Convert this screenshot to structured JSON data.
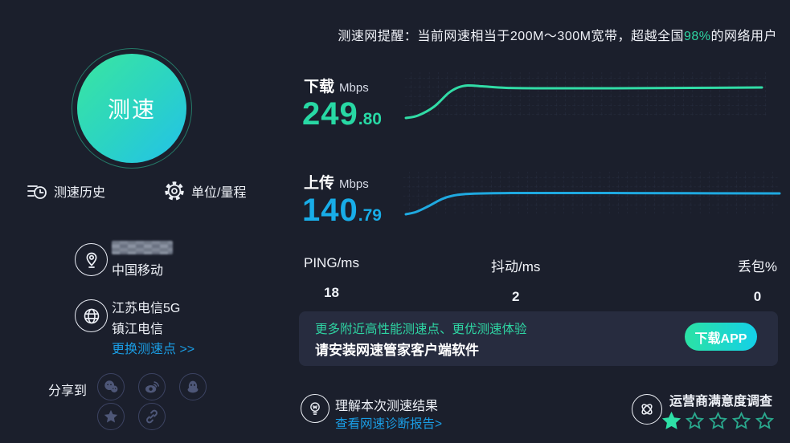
{
  "reminder": {
    "prefix": "测速网提醒：当前网速相当于200M～300M宽带，超越全国",
    "highlight": "98%",
    "suffix": "的网络用户"
  },
  "speed_button": {
    "label": "测速"
  },
  "left_nav": {
    "history_label": "测速历史",
    "unit_label": "单位/量程"
  },
  "connection": {
    "isp": "中国移动",
    "server_line1": "江苏电信5G",
    "server_line2": "镇江电信",
    "change_link": "更换测速点 >>"
  },
  "share": {
    "label": "分享到",
    "icons": [
      "wechat",
      "weibo",
      "qq",
      "qzone",
      "copy-link"
    ]
  },
  "download": {
    "label": "下载",
    "unit": "Mbps",
    "value_int": "249",
    "value_dec": ".80"
  },
  "upload": {
    "label": "上传",
    "unit": "Mbps",
    "value_int": "140",
    "value_dec": ".79"
  },
  "metrics": {
    "ping_label": "PING/ms",
    "ping_value": "18",
    "jitter_label": "抖动/ms",
    "jitter_value": "2",
    "loss_label": "丢包%",
    "loss_value": "0"
  },
  "banner": {
    "line1": "更多附近高性能测速点、更优测速体验",
    "line2": "请安装网速管家客户端软件",
    "button_label": "下载APP"
  },
  "footer": {
    "result_title": "理解本次测速结果",
    "report_link": "查看网速诊断报告>",
    "survey_title": "运营商满意度调查"
  },
  "survey": {
    "rating": 1,
    "max": 5,
    "stars": [
      "filled",
      "empty",
      "empty",
      "empty",
      "empty"
    ]
  },
  "colors": {
    "background": "#1b1f2c",
    "accent_green": "#2ed5a3",
    "accent_blue": "#1a9de4",
    "download_line": "#31dca6",
    "upload_line": "#1fa9e0",
    "banner_bg": "#272c3f"
  },
  "chart_data": [
    {
      "type": "line",
      "name": "download-speed-over-time",
      "title": "下载 Mbps",
      "final_value": 249.8,
      "color": "#31dca6",
      "note": "ramp-up curve, no visible axes; points in local px (457x62 box)",
      "points": [
        [
          5,
          61
        ],
        [
          20,
          58
        ],
        [
          40,
          47
        ],
        [
          58,
          30
        ],
        [
          70,
          23
        ],
        [
          82,
          20.5
        ],
        [
          100,
          21.5
        ],
        [
          130,
          23.5
        ],
        [
          180,
          24
        ],
        [
          260,
          24
        ],
        [
          360,
          23.5
        ],
        [
          448,
          23
        ]
      ]
    },
    {
      "type": "line",
      "name": "upload-speed-over-time",
      "title": "上传 Mbps",
      "final_value": 140.79,
      "color": "#1fa9e0",
      "note": "ramp-up curve, no visible axes; points in local px (474x60 box)",
      "points": [
        [
          7,
          57
        ],
        [
          20,
          54
        ],
        [
          35,
          47
        ],
        [
          52,
          38
        ],
        [
          67,
          33.5
        ],
        [
          87,
          31.5
        ],
        [
          140,
          30.5
        ],
        [
          250,
          30.5
        ],
        [
          360,
          30.8
        ],
        [
          472,
          31
        ]
      ]
    }
  ]
}
